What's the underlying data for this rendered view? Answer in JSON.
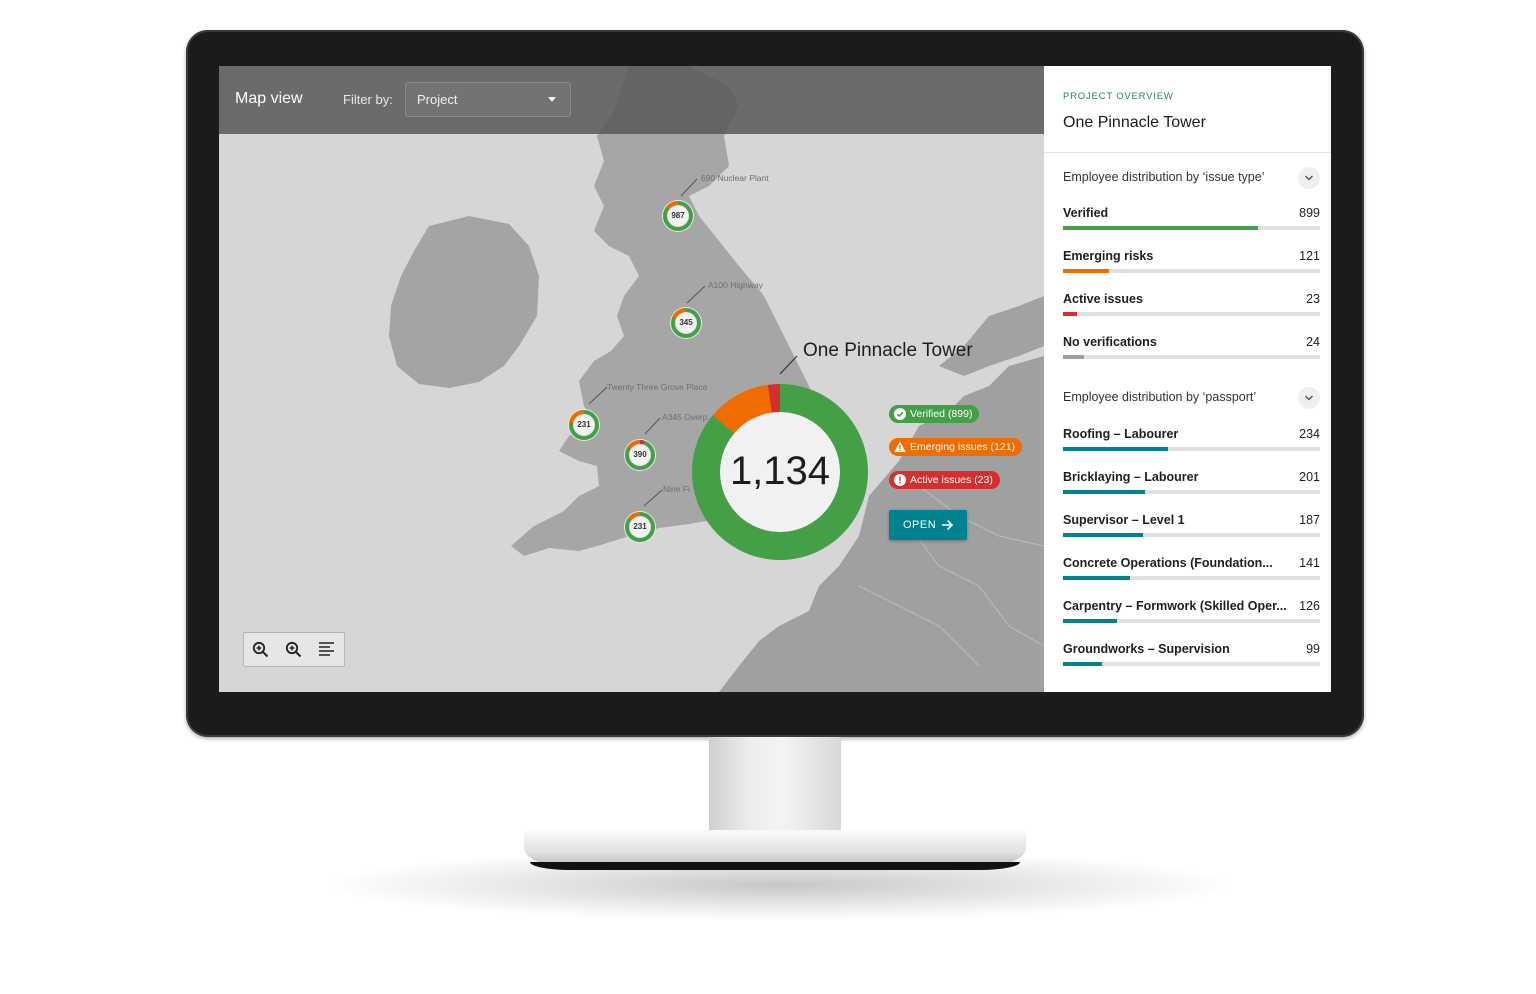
{
  "header": {
    "title": "Map view",
    "filter_label": "Filter by:",
    "filter_value": "Project"
  },
  "map": {
    "sites": [
      {
        "label": "690 Nuclear Plant",
        "count": "987"
      },
      {
        "label": "A100 Highway",
        "count": "345"
      },
      {
        "label": "Twenty Three Grove Place",
        "count": "231"
      },
      {
        "label": "A345 Overp",
        "count": "390"
      },
      {
        "label": "Nine Fi",
        "count": "231"
      }
    ],
    "selected": {
      "name": "One Pinnacle Tower",
      "total": "1,134",
      "chips": {
        "verified": "Verified (899)",
        "emerging": "Emerging issues (121)",
        "active": "Active issues (23)"
      },
      "open_label": "OPEN"
    },
    "colors": {
      "verified": "#43a047",
      "emerging": "#ef6c00",
      "active": "#d32f2f",
      "none": "#9e9e9e",
      "teal": "#00838f"
    }
  },
  "chart_data": {
    "type": "pie",
    "categories": [
      "Verified",
      "Emerging issues",
      "Active issues"
    ],
    "values": [
      899,
      121,
      23
    ],
    "title": "One Pinnacle Tower"
  },
  "panel": {
    "overline": "PROJECT OVERVIEW",
    "title": "One Pinnacle Tower",
    "section1": {
      "title": "Employee distribution by ‘issue type’",
      "rows": [
        {
          "name": "Verified",
          "value": "899",
          "fraction": 0.76,
          "color": "#43a047"
        },
        {
          "name": "Emerging risks",
          "value": "121",
          "fraction": 0.18,
          "color": "#ef6c00"
        },
        {
          "name": "Active issues",
          "value": "23",
          "fraction": 0.055,
          "color": "#d32f2f"
        },
        {
          "name": "No verifications",
          "value": "24",
          "fraction": 0.08,
          "color": "#9e9e9e"
        }
      ]
    },
    "section2": {
      "title": "Employee distribution by ‘passport’",
      "rows": [
        {
          "name": "Roofing – Labourer",
          "value": "234",
          "fraction": 0.41,
          "color": "#00838f"
        },
        {
          "name": "Bricklaying – Labourer",
          "value": "201",
          "fraction": 0.32,
          "color": "#00838f"
        },
        {
          "name": "Supervisor – Level 1",
          "value": "187",
          "fraction": 0.31,
          "color": "#00838f"
        },
        {
          "name": "Concrete Operations (Foundation...",
          "value": "141",
          "fraction": 0.26,
          "color": "#00838f"
        },
        {
          "name": "Carpentry – Formwork (Skilled Oper...",
          "value": "126",
          "fraction": 0.21,
          "color": "#00838f"
        },
        {
          "name": "Groundworks – Supervision",
          "value": "99",
          "fraction": 0.15,
          "color": "#00838f"
        }
      ]
    }
  }
}
